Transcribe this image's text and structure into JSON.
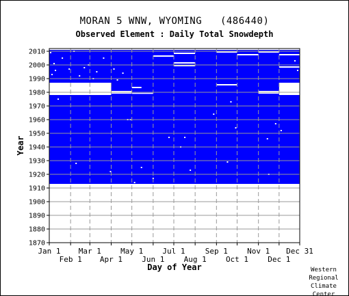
{
  "header": {
    "station": "MORAN 5 WNW, WYOMING   (486440)",
    "element": "Observed Element : Daily Total Snowdepth"
  },
  "credit": [
    "Western",
    "Regional",
    "Climate",
    "Center"
  ],
  "chart_data": {
    "type": "heatmap",
    "title": "MORAN 5 WNW, WYOMING   (486440)",
    "subtitle": "Observed Element : Daily Total Snowdepth",
    "xlabel": "Day of Year",
    "ylabel": "Year",
    "xlim": [
      1,
      365
    ],
    "ylim": [
      1870,
      2012
    ],
    "grid": true,
    "data_color": "#0000ff",
    "missing_color": "#ffffff",
    "x_ticks_top": [
      {
        "label": "Jan 1",
        "day": 1
      },
      {
        "label": "Mar 1",
        "day": 60
      },
      {
        "label": "May 1",
        "day": 121
      },
      {
        "label": "Jul 1",
        "day": 182
      },
      {
        "label": "Sep 1",
        "day": 244
      },
      {
        "label": "Nov 1",
        "day": 305
      },
      {
        "label": "Dec 31",
        "day": 365
      }
    ],
    "x_ticks_bottom": [
      {
        "label": "Feb 1",
        "day": 32
      },
      {
        "label": "Apr 1",
        "day": 91
      },
      {
        "label": "Jun 1",
        "day": 152
      },
      {
        "label": "Aug 1",
        "day": 213
      },
      {
        "label": "Oct 1",
        "day": 274
      },
      {
        "label": "Dec 1",
        "day": 335
      }
    ],
    "y_ticks": [
      1870,
      1880,
      1890,
      1900,
      1910,
      1920,
      1930,
      1940,
      1950,
      1960,
      1970,
      1980,
      1990,
      2000,
      2010
    ],
    "record_start_year": 1913,
    "record_end_year": 2011,
    "missing_periods": [
      {
        "start_day": 1,
        "end_day": 91,
        "start_year": 1978,
        "end_year": 1987
      },
      {
        "start_day": 91,
        "end_day": 121,
        "start_year": 1979,
        "end_year": 1981
      },
      {
        "start_day": 121,
        "end_day": 152,
        "start_year": 1979,
        "end_year": 1979.6
      },
      {
        "start_day": 305,
        "end_day": 335,
        "start_year": 1979,
        "end_year": 1981
      },
      {
        "start_day": 335,
        "end_day": 365,
        "start_year": 1978,
        "end_year": 1987
      },
      {
        "start_day": 182,
        "end_day": 213,
        "start_year": 1999,
        "end_year": 2000
      },
      {
        "start_day": 182,
        "end_day": 213,
        "start_year": 2001,
        "end_year": 2002
      },
      {
        "start_day": 182,
        "end_day": 213,
        "start_year": 2008,
        "end_year": 2009
      },
      {
        "start_day": 152,
        "end_day": 182,
        "start_year": 2006,
        "end_year": 2007
      },
      {
        "start_day": 244,
        "end_day": 274,
        "start_year": 2009,
        "end_year": 2010
      },
      {
        "start_day": 274,
        "end_day": 305,
        "start_year": 2007,
        "end_year": 2008
      },
      {
        "start_day": 305,
        "end_day": 335,
        "start_year": 2009,
        "end_year": 2010
      },
      {
        "start_day": 335,
        "end_day": 365,
        "start_year": 2007,
        "end_year": 2008
      },
      {
        "start_day": 244,
        "end_day": 274,
        "start_year": 1985,
        "end_year": 1986
      },
      {
        "start_day": 335,
        "end_day": 365,
        "start_year": 1998,
        "end_year": 1999
      },
      {
        "start_day": 121,
        "end_day": 135,
        "start_year": 1983,
        "end_year": 1984
      }
    ],
    "missing_days": [
      {
        "day": 3,
        "year": 2009
      },
      {
        "day": 8,
        "year": 2001
      },
      {
        "day": 10,
        "year": 1996
      },
      {
        "day": 5,
        "year": 1993
      },
      {
        "day": 14,
        "year": 1975
      },
      {
        "day": 20,
        "year": 2005
      },
      {
        "day": 30,
        "year": 1997
      },
      {
        "day": 37,
        "year": 2010
      },
      {
        "day": 45,
        "year": 1992
      },
      {
        "day": 52,
        "year": 1998
      },
      {
        "day": 58,
        "year": 2000
      },
      {
        "day": 65,
        "year": 1990
      },
      {
        "day": 70,
        "year": 1995
      },
      {
        "day": 80,
        "year": 2005
      },
      {
        "day": 95,
        "year": 1997
      },
      {
        "day": 100,
        "year": 1989
      },
      {
        "day": 108,
        "year": 1994
      },
      {
        "day": 115,
        "year": 1960
      },
      {
        "day": 119,
        "year": 1960
      },
      {
        "day": 125,
        "year": 1914
      },
      {
        "day": 135,
        "year": 1925
      },
      {
        "day": 152,
        "year": 1917
      },
      {
        "day": 175,
        "year": 1947
      },
      {
        "day": 192,
        "year": 1940
      },
      {
        "day": 198,
        "year": 1947
      },
      {
        "day": 206,
        "year": 1923
      },
      {
        "day": 240,
        "year": 1964
      },
      {
        "day": 260,
        "year": 1929
      },
      {
        "day": 265,
        "year": 1973
      },
      {
        "day": 272,
        "year": 1954
      },
      {
        "day": 318,
        "year": 1946
      },
      {
        "day": 320,
        "year": 1920
      },
      {
        "day": 330,
        "year": 1957
      },
      {
        "day": 338,
        "year": 1952
      },
      {
        "day": 350,
        "year": 1983
      },
      {
        "day": 358,
        "year": 2003
      },
      {
        "day": 362,
        "year": 1996
      },
      {
        "day": 40,
        "year": 1928
      },
      {
        "day": 90,
        "year": 1922
      }
    ]
  }
}
